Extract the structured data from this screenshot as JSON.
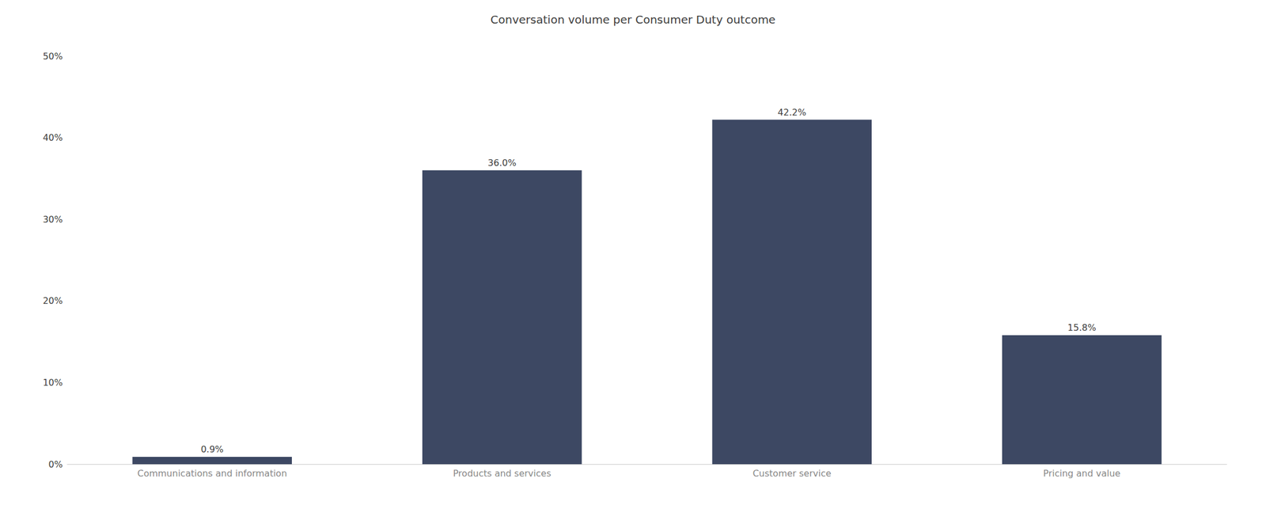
{
  "chart_data": {
    "type": "bar",
    "title": "Conversation volume per Consumer Duty outcome",
    "categories": [
      "Communications and information",
      "Products and services",
      "Customer service",
      "Pricing and value"
    ],
    "values": [
      0.9,
      36.0,
      42.2,
      15.8
    ],
    "value_labels": [
      "0.9%",
      "36.0%",
      "42.2%",
      "15.8%"
    ],
    "color": "#3d4863",
    "ylim": [
      0,
      50
    ],
    "yticks": [
      {
        "value": 0,
        "label": "0%"
      },
      {
        "value": 10,
        "label": "10%"
      },
      {
        "value": 20,
        "label": "20%"
      },
      {
        "value": 30,
        "label": "30%"
      },
      {
        "value": 40,
        "label": "40%"
      },
      {
        "value": 50,
        "label": "50%"
      }
    ],
    "grid": false,
    "data_labels": true
  }
}
